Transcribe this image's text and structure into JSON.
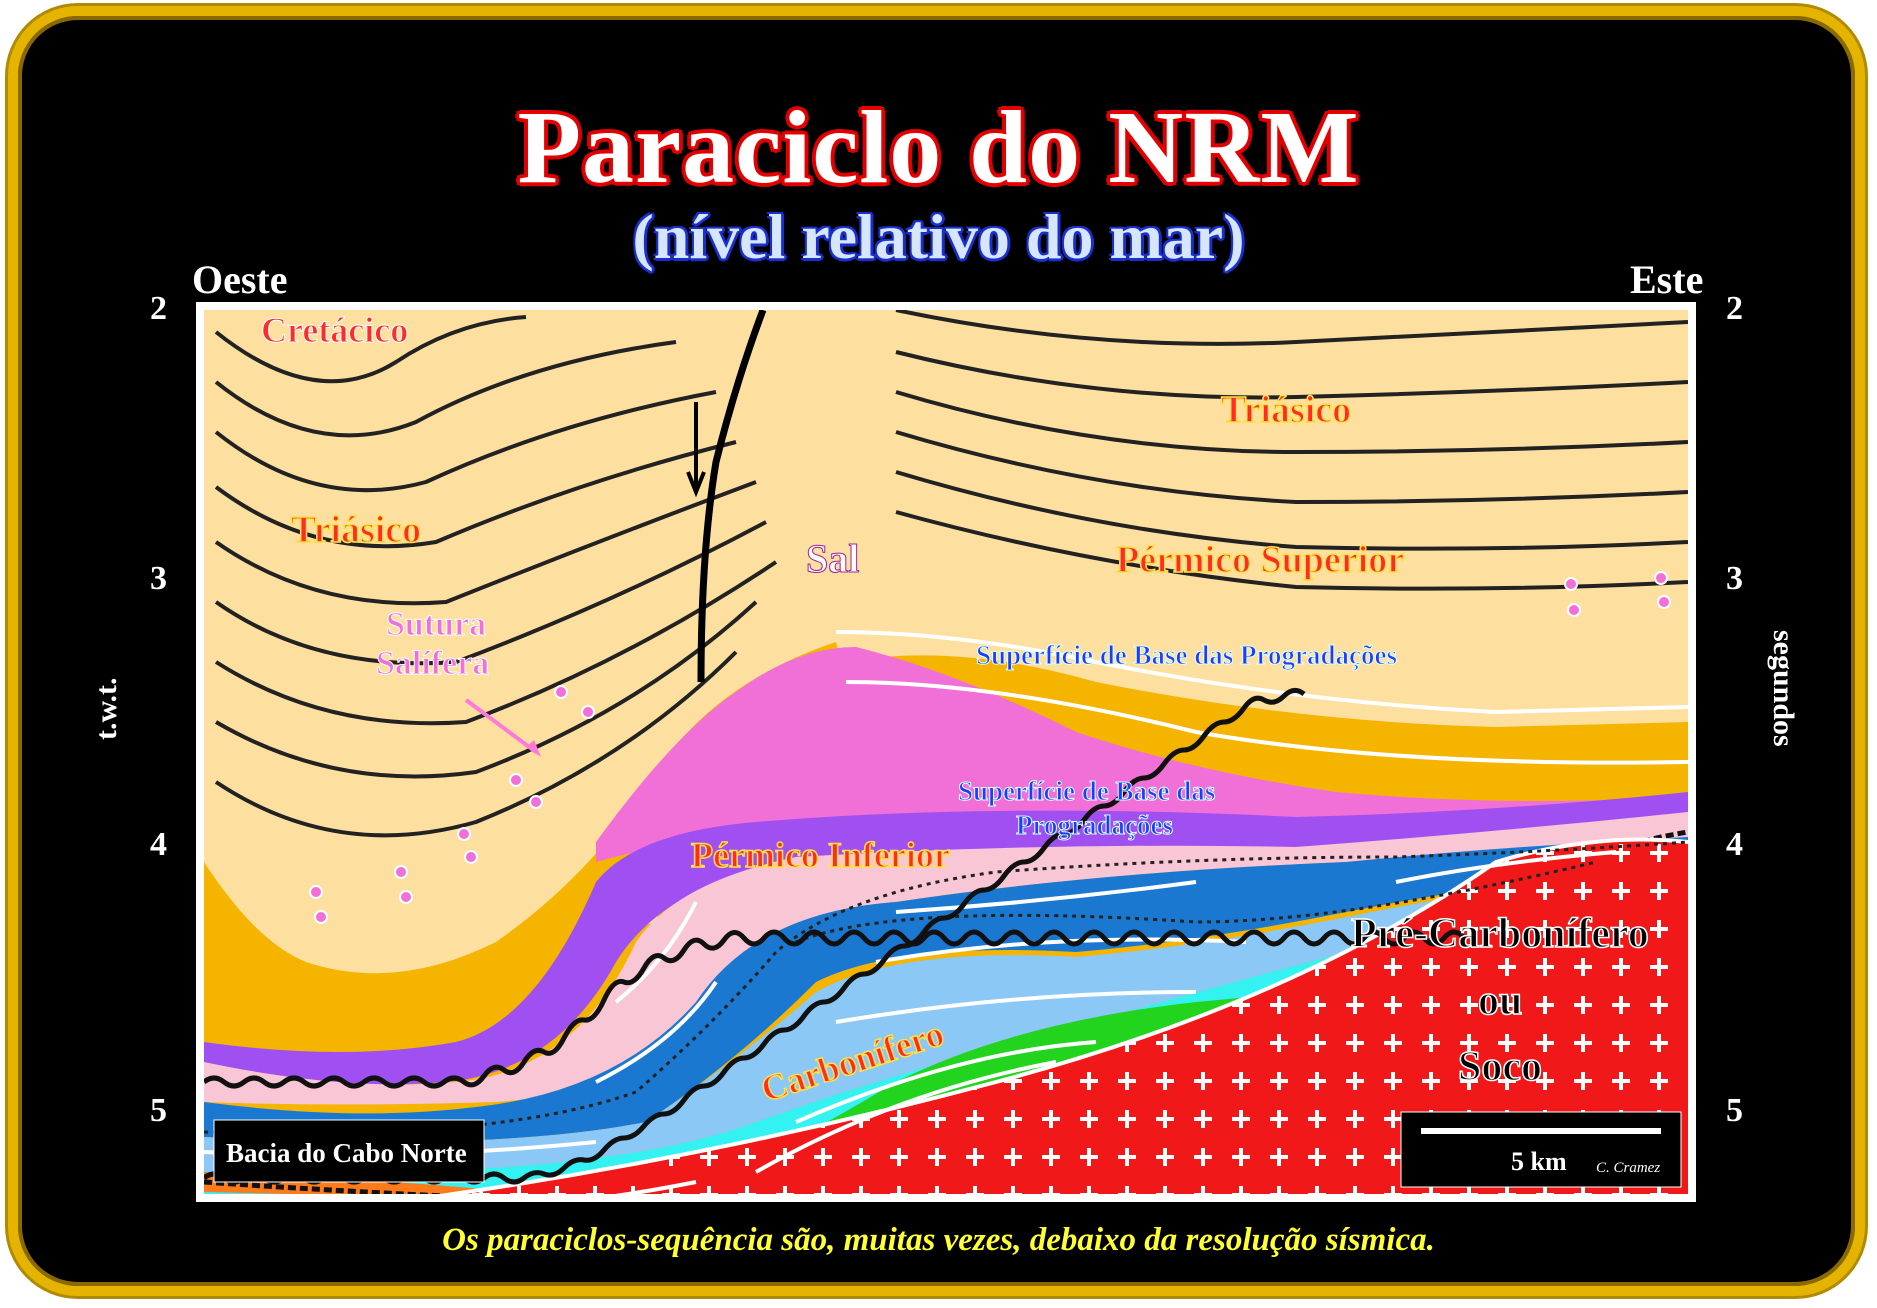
{
  "title": "Paraciclo do NRM",
  "subtitle": "(nível relativo do mar)",
  "west_label": "Oeste",
  "east_label": "Este",
  "left_axis": {
    "label": "t.w.t.",
    "ticks": [
      "2",
      "3",
      "4",
      "5"
    ]
  },
  "right_axis": {
    "label": "segundos",
    "ticks": [
      "2",
      "3",
      "4",
      "5"
    ]
  },
  "labels": {
    "cretaceo": "Cretácico",
    "triasico_west": "Triásico",
    "triasico_east": "Triásico",
    "sal": "Sal",
    "permico_superior": "Pérmico Superior",
    "sutura_1": "Sutura",
    "sutura_2": "Salífera",
    "base_prog_top": "Superfície de Base das Progradações",
    "base_prog_mid_1": "Superfície de Base das",
    "base_prog_mid_2": "Progradações",
    "permico_inferior": "Pérmico Inferior",
    "carbonifero": "Carbonífero",
    "pre_carb_1": "Pré-Carbonífero",
    "pre_carb_2": "ou",
    "pre_carb_3": "Soco"
  },
  "basin_label": "Bacia do Cabo Norte",
  "scale_label": "5 km",
  "author": "C. Cramez",
  "caption": "Os paraciclos-sequência são, muitas vezes, debaixo da resolução sísmica.",
  "colors": {
    "frame": "#e5b400",
    "triassic": "#fde0a0",
    "permian_upper": "#f4b400",
    "salt": "#f070d8",
    "purple_layer": "#a050f0",
    "pink_layer": "#f9c6d6",
    "blue_dark": "#1a78d0",
    "blue_light": "#8cc8f5",
    "cyan": "#35f2f2",
    "green": "#22d41e",
    "carboniferous": "#ff7a1a",
    "basement": "#f01818",
    "cretaceous_text": "#ff2a2a"
  }
}
